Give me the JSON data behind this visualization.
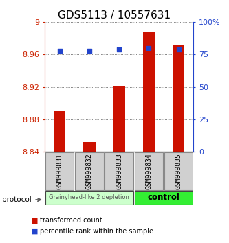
{
  "title": "GDS5113 / 10557631",
  "samples": [
    "GSM999831",
    "GSM999832",
    "GSM999833",
    "GSM999834",
    "GSM999835"
  ],
  "bar_values": [
    8.89,
    8.852,
    8.921,
    8.988,
    8.972
  ],
  "bar_base": 8.84,
  "percentile_values": [
    78,
    78,
    79,
    80,
    79
  ],
  "ylim_left": [
    8.84,
    9.0
  ],
  "ylim_right": [
    0,
    100
  ],
  "yticks_left": [
    8.84,
    8.88,
    8.92,
    8.96,
    9.0
  ],
  "yticks_right": [
    0,
    25,
    50,
    75,
    100
  ],
  "bar_color": "#cc1100",
  "percentile_color": "#2244cc",
  "grid_color": "#555555",
  "group1_samples": [
    0,
    1,
    2
  ],
  "group2_samples": [
    3,
    4
  ],
  "group1_label": "Grainyhead-like 2 depletion",
  "group2_label": "control",
  "group1_color": "#ccffcc",
  "group2_color": "#33ee33",
  "protocol_label": "protocol",
  "legend_bar_label": "transformed count",
  "legend_pct_label": "percentile rank within the sample",
  "left_axis_color": "#cc2200",
  "right_axis_color": "#2244cc",
  "title_fontsize": 11,
  "tick_fontsize": 8,
  "sample_fontsize": 7
}
